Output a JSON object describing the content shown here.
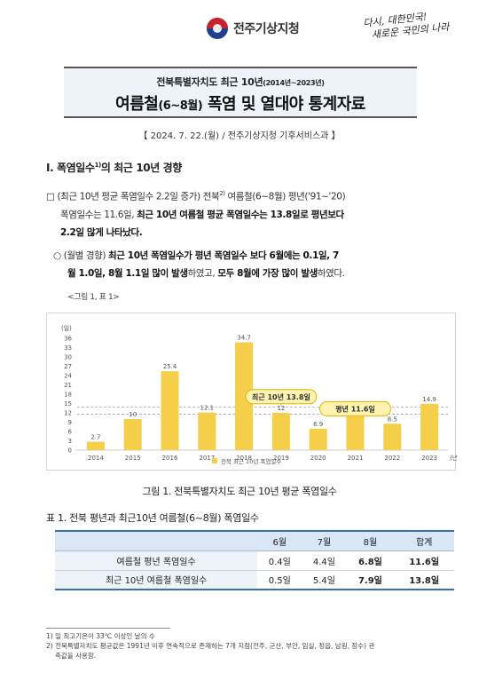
{
  "header": {
    "org_name": "전주기상지청",
    "slogan_line1": "다시, 대한민국!",
    "slogan_line2": "새로운 국민의 나라"
  },
  "title": {
    "subtitle": "전북특별자치도 최근 10년",
    "subtitle_period": "(2014년~2023년)",
    "main": "여름철",
    "main_period": "(6~8월)",
    "main_rest": " 폭염 및 열대야 통계자료"
  },
  "dateline": "【 2024. 7. 22.(월) / 전주기상지청 기후서비스과 】",
  "section": {
    "number": "Ⅰ.",
    "title": "폭염일수",
    "footnote_mark": "1)",
    "title_rest": "의 최근 10년 경향"
  },
  "para1": {
    "bullet": "□",
    "text_a": "(최근 10년 평균 폭염일수 2.2일 증가) 전북",
    "footnote_mark": "2)",
    "text_b": " 여름철(6~8월) 평년('91~'20)",
    "text_c": "폭염일수는 11.6일, ",
    "bold_c": "최근 10년 여름철 평균 폭염일수는 13.8일로 평년보다",
    "bold_d": "2.2일 많게 나타났다."
  },
  "para2": {
    "bullet": "○",
    "text_a": "(월별 경향) ",
    "bold_a": "최근 10년 폭염일수가 평년 폭염일수 보다 6월에는 0.1일, 7",
    "bold_b": "월 1.0일, 8월 1.1일 많이 발생",
    "text_b": "하였고, ",
    "bold_c": "모두 8월에 가장 많이 발생",
    "text_c": "하였다."
  },
  "para3": "<그림 1, 표 1>",
  "chart_data": {
    "type": "bar",
    "title": "",
    "ylabel": "(일)",
    "xlabel": "(년)",
    "categories": [
      "2014",
      "2015",
      "2016",
      "2017",
      "2018",
      "2019",
      "2020",
      "2021",
      "2022",
      "2023"
    ],
    "values": [
      2.7,
      10,
      25.4,
      12.1,
      34.7,
      12,
      6.9,
      10.9,
      8.5,
      14.9
    ],
    "value_labels": [
      "2.7",
      "10",
      "25.4",
      "12.1",
      "34.7",
      "12",
      "6.9",
      "10.9",
      "8.5",
      "14.9"
    ],
    "ylim": [
      0,
      36
    ],
    "yticks": [
      0,
      3,
      6,
      9,
      12,
      15,
      18,
      21,
      24,
      27,
      30,
      33,
      36
    ],
    "grid": false,
    "bar_color": "#f6cf4a",
    "legend": [
      {
        "name": "전북 최근 10년 폭염일수"
      }
    ],
    "legend_position": "bottom-center",
    "reference_lines": [
      {
        "label": "최근 10년 13.8일",
        "value": 13.8
      },
      {
        "label": "평년 11.6일",
        "value": 11.6
      }
    ],
    "callout_color": "#fff3b0",
    "callout_border": "#e2b200"
  },
  "figure_caption": "그림 1. 전북특별자치도 최근 10년 평균 폭염일수",
  "table_caption": "표 1. 전북 평년과 최근10년 여름철(6~8월) 폭염일수",
  "table": {
    "headers": [
      "",
      "6월",
      "7월",
      "8월",
      "합계"
    ],
    "rows": [
      {
        "label": "여름철 평년 폭염일수",
        "m6": "0.4일",
        "m7": "4.4일",
        "m8": "6.8일",
        "total": "11.6일"
      },
      {
        "label": "최근 10년 여름철 폭염일수",
        "m6": "0.5일",
        "m7": "5.4일",
        "m8": "7.9일",
        "total": "13.8일"
      }
    ]
  },
  "footnotes": {
    "fn1": "1) 일 최고기온이 33℃ 이상인 날의 수",
    "fn2_a": "2) 전북특별자치도 평균값은 1991년 이후 연속적으로 존재하는 7개 지점(전주, 군산, 부안, 임실, 정읍, 남원, 장수) 관",
    "fn2_b": "측값을 사용함."
  }
}
